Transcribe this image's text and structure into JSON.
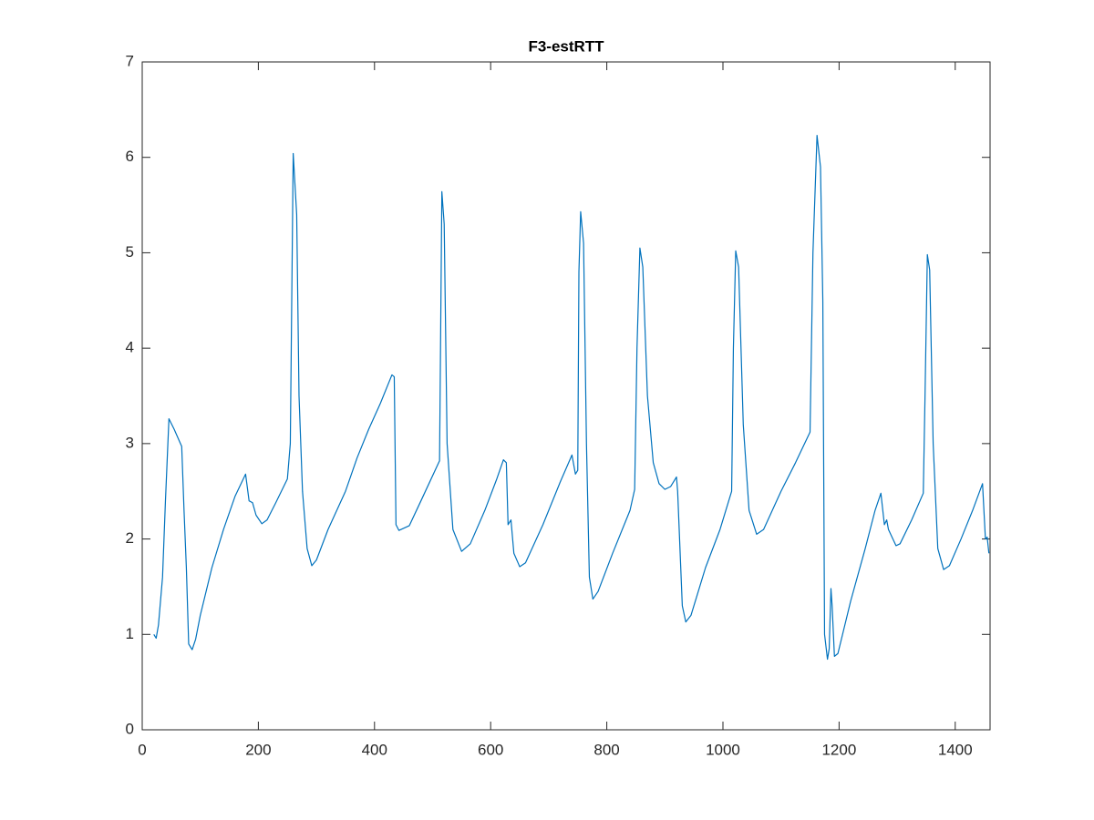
{
  "chart_data": {
    "type": "line",
    "title": "F3-estRTT",
    "color": "#0072bd",
    "x": [
      20,
      24,
      28,
      35,
      40,
      46,
      55,
      68,
      72,
      76,
      80,
      86,
      92,
      100,
      120,
      140,
      160,
      178,
      184,
      190,
      196,
      206,
      215,
      230,
      250,
      255,
      260,
      266,
      270,
      276,
      284,
      292,
      300,
      320,
      350,
      370,
      390,
      410,
      430,
      434,
      437,
      442,
      460,
      480,
      512,
      516,
      520,
      525,
      535,
      550,
      565,
      590,
      610,
      622,
      627,
      630,
      635,
      640,
      650,
      660,
      690,
      720,
      740,
      746,
      750,
      752,
      755,
      760,
      765,
      770,
      776,
      785,
      810,
      840,
      848,
      852,
      857,
      862,
      870,
      880,
      890,
      900,
      910,
      920,
      922,
      930,
      936,
      945,
      970,
      995,
      1015,
      1018,
      1022,
      1027,
      1035,
      1045,
      1058,
      1070,
      1100,
      1125,
      1150,
      1155,
      1162,
      1168,
      1172,
      1175,
      1180,
      1183,
      1186,
      1188,
      1192,
      1198,
      1220,
      1245,
      1262,
      1272,
      1278,
      1282,
      1285,
      1298,
      1305,
      1325,
      1345,
      1348,
      1352,
      1356,
      1362,
      1370,
      1380,
      1390,
      1410,
      1430,
      1447,
      1452,
      1455,
      1458
    ],
    "values": [
      1.0,
      0.96,
      1.1,
      1.6,
      2.4,
      3.26,
      3.15,
      2.97,
      2.3,
      1.7,
      0.9,
      0.84,
      0.95,
      1.2,
      1.7,
      2.1,
      2.45,
      2.68,
      2.4,
      2.38,
      2.25,
      2.16,
      2.2,
      2.38,
      2.63,
      3.0,
      6.04,
      5.4,
      3.5,
      2.5,
      1.9,
      1.72,
      1.78,
      2.1,
      2.5,
      2.85,
      3.15,
      3.42,
      3.72,
      3.7,
      2.15,
      2.09,
      2.14,
      2.4,
      2.82,
      5.64,
      5.3,
      3.0,
      2.1,
      1.87,
      1.95,
      2.3,
      2.62,
      2.83,
      2.8,
      2.15,
      2.2,
      1.85,
      1.71,
      1.75,
      2.15,
      2.6,
      2.88,
      2.68,
      2.72,
      4.8,
      5.43,
      5.1,
      3.0,
      1.6,
      1.37,
      1.45,
      1.85,
      2.3,
      2.52,
      4.0,
      5.05,
      4.85,
      3.5,
      2.8,
      2.58,
      2.52,
      2.55,
      2.65,
      2.5,
      1.3,
      1.13,
      1.2,
      1.7,
      2.1,
      2.5,
      4.0,
      5.02,
      4.85,
      3.2,
      2.3,
      2.05,
      2.1,
      2.5,
      2.8,
      3.12,
      5.0,
      6.23,
      5.9,
      4.5,
      1.0,
      0.74,
      0.85,
      1.48,
      1.3,
      0.77,
      0.8,
      1.35,
      1.9,
      2.3,
      2.48,
      2.15,
      2.2,
      2.1,
      1.93,
      1.95,
      2.2,
      2.48,
      3.5,
      4.98,
      4.82,
      3.0,
      1.9,
      1.68,
      1.72,
      2.0,
      2.3,
      2.58,
      2.0,
      2.02,
      1.85
    ],
    "xlim": [
      0,
      1460
    ],
    "xticks": [
      0,
      200,
      400,
      600,
      800,
      1000,
      1200,
      1400
    ],
    "ylim": [
      0,
      7
    ],
    "yticks": [
      0,
      1,
      2,
      3,
      4,
      5,
      6,
      7
    ]
  }
}
